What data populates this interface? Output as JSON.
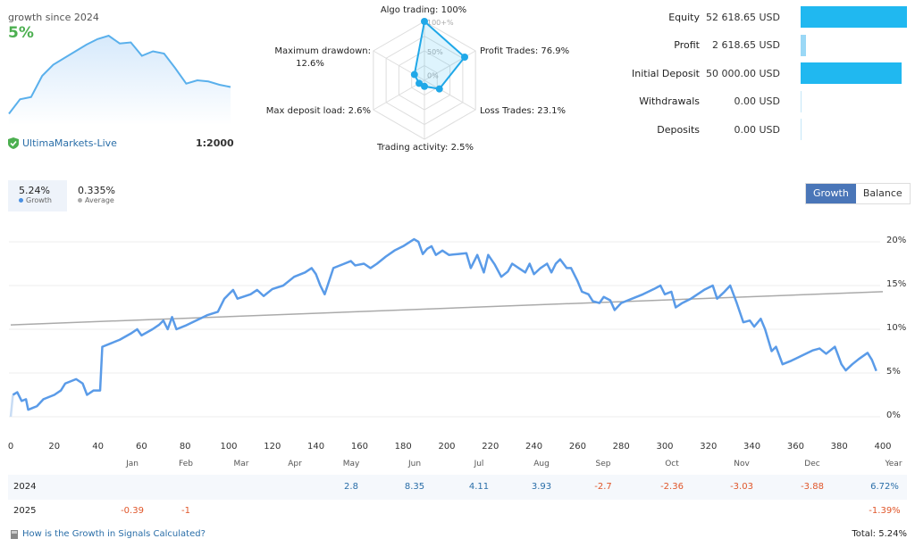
{
  "summary": {
    "growth_since": "growth since 2024",
    "growth_value": "5%",
    "broker": "UltimaMarkets-Live",
    "leverage": "1:2000",
    "sparkline": [
      0.2,
      1.5,
      1.7,
      3.6,
      4.6,
      5.2,
      5.8,
      6.4,
      6.9,
      7.2,
      6.5,
      6.6,
      5.4,
      5.8,
      5.6,
      4.3,
      2.9,
      3.2,
      3.1,
      2.8,
      2.6
    ]
  },
  "radar": {
    "axes": [
      {
        "label": "Algo trading: 100%",
        "value": 100
      },
      {
        "label": "Profit Trades: 76.9%",
        "value": 76.9
      },
      {
        "label": "Loss Trades: 23.1%",
        "value": 23.1
      },
      {
        "label": "Trading activity: 2.5%",
        "value": 2.5
      },
      {
        "label": "Max deposit load: 2.6%",
        "value": 2.6
      },
      {
        "label": "Maximum drawdown:",
        "label2": "12.6%",
        "value": 12.6
      }
    ],
    "ring_labels": [
      "100+%",
      "50%",
      "0%"
    ]
  },
  "financials": [
    {
      "label": "Equity",
      "value": "52 618.65 USD",
      "amount": 52618.65
    },
    {
      "label": "Profit",
      "value": "2 618.65 USD",
      "amount": 2618.65
    },
    {
      "label": "Initial Deposit",
      "value": "50 000.00 USD",
      "amount": 50000
    },
    {
      "label": "Withdrawals",
      "value": "0.00 USD",
      "amount": 0
    },
    {
      "label": "Deposits",
      "value": "0.00 USD",
      "amount": 0
    }
  ],
  "tabs": [
    {
      "value": "5.24%",
      "label": "Growth",
      "color": "#4a90e2"
    },
    {
      "value": "0.335%",
      "label": "Average",
      "color": "#aaaaaa"
    }
  ],
  "toggle": {
    "growth": "Growth",
    "balance": "Balance"
  },
  "chart_data": {
    "type": "line",
    "xlim": [
      0,
      400
    ],
    "ylim": [
      0,
      20
    ],
    "x_ticks": [
      "0",
      "20",
      "40",
      "60",
      "80",
      "100",
      "120",
      "140",
      "160",
      "180",
      "200",
      "220",
      "240",
      "260",
      "280",
      "300",
      "320",
      "340",
      "360",
      "380",
      "400"
    ],
    "y_ticks": [
      "0%",
      "5%",
      "10%",
      "15%",
      "20%"
    ],
    "months": [
      "Jan",
      "Feb",
      "Mar",
      "Apr",
      "May",
      "Jun",
      "Jul",
      "Aug",
      "Sep",
      "Oct",
      "Nov",
      "Dec",
      "Year"
    ],
    "series": [
      {
        "name": "Growth",
        "color": "#5a9be8",
        "points": [
          [
            0,
            0
          ],
          [
            1,
            2.5
          ],
          [
            3,
            2.8
          ],
          [
            5,
            1.8
          ],
          [
            7,
            2
          ],
          [
            8,
            0.8
          ],
          [
            10,
            1
          ],
          [
            12,
            1.2
          ],
          [
            15,
            2
          ],
          [
            20,
            2.5
          ],
          [
            23,
            3
          ],
          [
            25,
            3.8
          ],
          [
            30,
            4.3
          ],
          [
            33,
            3.8
          ],
          [
            35,
            2.5
          ],
          [
            38,
            3
          ],
          [
            41,
            3
          ],
          [
            42,
            8
          ],
          [
            45,
            8.3
          ],
          [
            50,
            8.8
          ],
          [
            55,
            9.5
          ],
          [
            58,
            10
          ],
          [
            60,
            9.3
          ],
          [
            65,
            10
          ],
          [
            68,
            10.5
          ],
          [
            70,
            11
          ],
          [
            72,
            10
          ],
          [
            74,
            11.4
          ],
          [
            76,
            10
          ],
          [
            80,
            10.4
          ],
          [
            85,
            11
          ],
          [
            90,
            11.6
          ],
          [
            95,
            12
          ],
          [
            98,
            13.5
          ],
          [
            100,
            14
          ],
          [
            102,
            14.5
          ],
          [
            104,
            13.5
          ],
          [
            110,
            14
          ],
          [
            113,
            14.5
          ],
          [
            116,
            13.8
          ],
          [
            120,
            14.6
          ],
          [
            125,
            15
          ],
          [
            130,
            16
          ],
          [
            135,
            16.5
          ],
          [
            138,
            17
          ],
          [
            140,
            16.3
          ],
          [
            142,
            15
          ],
          [
            144,
            14
          ],
          [
            146,
            15.5
          ],
          [
            148,
            17
          ],
          [
            152,
            17.4
          ],
          [
            156,
            17.8
          ],
          [
            158,
            17.3
          ],
          [
            162,
            17.5
          ],
          [
            165,
            17
          ],
          [
            168,
            17.5
          ],
          [
            172,
            18.3
          ],
          [
            176,
            19
          ],
          [
            180,
            19.5
          ],
          [
            185,
            20.3
          ],
          [
            187,
            20
          ],
          [
            189,
            18.6
          ],
          [
            191,
            19.2
          ],
          [
            193,
            19.5
          ],
          [
            195,
            18.5
          ],
          [
            198,
            19
          ],
          [
            201,
            18.5
          ],
          [
            205,
            18.6
          ],
          [
            209,
            18.7
          ],
          [
            211,
            17
          ],
          [
            214,
            18.5
          ],
          [
            217,
            16.5
          ],
          [
            219,
            18.5
          ],
          [
            222,
            17.4
          ],
          [
            225,
            16
          ],
          [
            228,
            16.6
          ],
          [
            230,
            17.5
          ],
          [
            233,
            17
          ],
          [
            236,
            16.5
          ],
          [
            238,
            17.5
          ],
          [
            240,
            16.3
          ],
          [
            243,
            17
          ],
          [
            246,
            17.5
          ],
          [
            248,
            16.5
          ],
          [
            250,
            17.5
          ],
          [
            252,
            18
          ],
          [
            255,
            17
          ],
          [
            257,
            17
          ],
          [
            260,
            15.5
          ],
          [
            262,
            14.3
          ],
          [
            265,
            14
          ],
          [
            267,
            13.2
          ],
          [
            270,
            13
          ],
          [
            272,
            13.7
          ],
          [
            275,
            13.3
          ],
          [
            277,
            12.2
          ],
          [
            280,
            13
          ],
          [
            285,
            13.5
          ],
          [
            290,
            14
          ],
          [
            295,
            14.6
          ],
          [
            298,
            15
          ],
          [
            300,
            14
          ],
          [
            303,
            14.3
          ],
          [
            305,
            12.5
          ],
          [
            308,
            13
          ],
          [
            312,
            13.5
          ],
          [
            318,
            14.5
          ],
          [
            322,
            15
          ],
          [
            324,
            13.5
          ],
          [
            327,
            14.2
          ],
          [
            330,
            15
          ],
          [
            333,
            13
          ],
          [
            336,
            10.8
          ],
          [
            339,
            11
          ],
          [
            341,
            10.3
          ],
          [
            344,
            11.2
          ],
          [
            346,
            10
          ],
          [
            349,
            7.5
          ],
          [
            351,
            8
          ],
          [
            354,
            6
          ],
          [
            358,
            6.4
          ],
          [
            363,
            7
          ],
          [
            368,
            7.6
          ],
          [
            371,
            7.8
          ],
          [
            374,
            7.2
          ],
          [
            378,
            8
          ],
          [
            381,
            6
          ],
          [
            383,
            5.3
          ],
          [
            386,
            6
          ],
          [
            389,
            6.6
          ],
          [
            393,
            7.3
          ],
          [
            395,
            6.5
          ],
          [
            397,
            5.24
          ]
        ]
      },
      {
        "name": "Average",
        "color": "#aaaaaa",
        "points": [
          [
            0,
            10.5
          ],
          [
            400,
            14.3
          ]
        ]
      }
    ]
  },
  "monthly": {
    "rows": [
      {
        "year": "2024",
        "cells": [
          null,
          null,
          null,
          null,
          "2.8",
          "8.35",
          "4.11",
          "3.93",
          "-2.7",
          "-2.36",
          "-3.03",
          "-3.88",
          "6.72%"
        ]
      },
      {
        "year": "2025",
        "cells": [
          "-0.39",
          "-1",
          null,
          null,
          null,
          null,
          null,
          null,
          null,
          null,
          null,
          null,
          "-1.39%"
        ]
      }
    ]
  },
  "footer": {
    "faq_link": "How is the Growth in Signals Calculated?",
    "total": "Total: 5.24%"
  }
}
